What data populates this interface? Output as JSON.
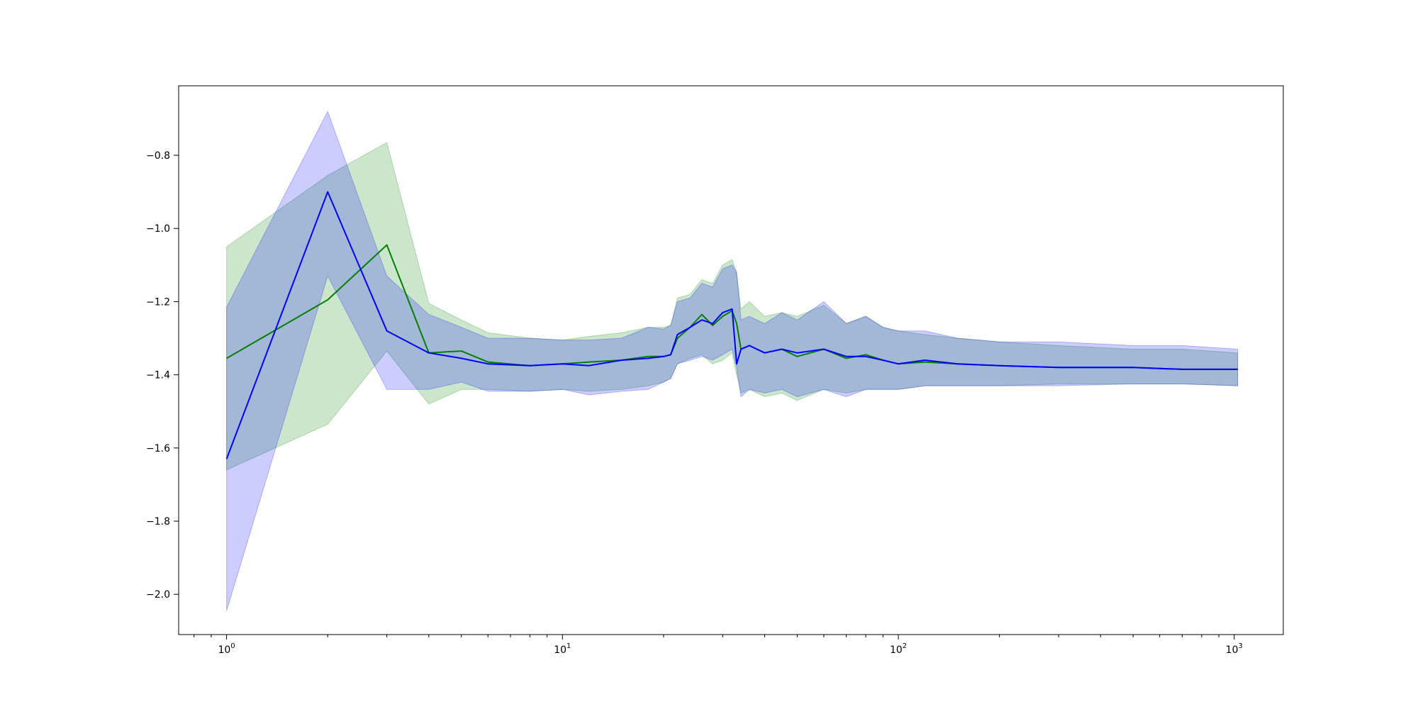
{
  "chart_data": {
    "type": "line",
    "title": "",
    "xlabel": "",
    "ylabel": "",
    "xscale": "log",
    "xlim": [
      0.72,
      1400
    ],
    "ylim": [
      -2.11,
      -0.61
    ],
    "grid": false,
    "legend": "none",
    "x_ticks": [
      {
        "value": 1,
        "label": "10",
        "exp": "0"
      },
      {
        "value": 10,
        "label": "10",
        "exp": "1"
      },
      {
        "value": 100,
        "label": "10",
        "exp": "2"
      },
      {
        "value": 1000,
        "label": "10",
        "exp": "3"
      }
    ],
    "y_ticks": [
      {
        "value": -0.8,
        "label": "−0.8"
      },
      {
        "value": -1.0,
        "label": "−1.0"
      },
      {
        "value": -1.2,
        "label": "−1.2"
      },
      {
        "value": -1.4,
        "label": "−1.4"
      },
      {
        "value": -1.6,
        "label": "−1.6"
      },
      {
        "value": -1.8,
        "label": "−1.8"
      },
      {
        "value": -2.0,
        "label": "−2.0"
      }
    ],
    "series": [
      {
        "color": "#008000",
        "band_color": "#008000",
        "band_opacity": 0.2,
        "x": [
          1,
          2,
          3,
          4,
          5,
          6,
          8,
          10,
          12,
          15,
          18,
          20,
          21,
          22,
          24,
          26,
          28,
          30,
          32,
          33,
          34,
          36,
          40,
          45,
          50,
          60,
          70,
          80,
          90,
          100,
          120,
          150,
          200,
          300,
          500,
          700,
          1024
        ],
        "y": [
          -1.355,
          -1.195,
          -1.045,
          -1.34,
          -1.335,
          -1.365,
          -1.375,
          -1.37,
          -1.365,
          -1.36,
          -1.35,
          -1.35,
          -1.345,
          -1.3,
          -1.27,
          -1.235,
          -1.265,
          -1.24,
          -1.225,
          -1.26,
          -1.33,
          -1.32,
          -1.34,
          -1.33,
          -1.35,
          -1.33,
          -1.355,
          -1.345,
          -1.36,
          -1.37,
          -1.365,
          -1.37,
          -1.375,
          -1.38,
          -1.38,
          -1.385,
          -1.385
        ],
        "lower": [
          -1.66,
          -1.535,
          -1.335,
          -1.48,
          -1.44,
          -1.44,
          -1.445,
          -1.44,
          -1.445,
          -1.44,
          -1.43,
          -1.42,
          -1.41,
          -1.37,
          -1.355,
          -1.345,
          -1.37,
          -1.36,
          -1.34,
          -1.4,
          -1.45,
          -1.44,
          -1.46,
          -1.45,
          -1.47,
          -1.44,
          -1.45,
          -1.44,
          -1.44,
          -1.44,
          -1.43,
          -1.43,
          -1.43,
          -1.425,
          -1.425,
          -1.425,
          -1.43
        ],
        "upper": [
          -1.05,
          -0.855,
          -0.765,
          -1.205,
          -1.25,
          -1.285,
          -1.3,
          -1.305,
          -1.295,
          -1.285,
          -1.27,
          -1.27,
          -1.265,
          -1.19,
          -1.18,
          -1.14,
          -1.15,
          -1.1,
          -1.085,
          -1.12,
          -1.22,
          -1.2,
          -1.24,
          -1.23,
          -1.24,
          -1.21,
          -1.26,
          -1.24,
          -1.27,
          -1.28,
          -1.29,
          -1.3,
          -1.31,
          -1.32,
          -1.33,
          -1.33,
          -1.34
        ]
      },
      {
        "color": "#0000ff",
        "band_color": "#0000ff",
        "band_opacity": 0.2,
        "x": [
          1,
          2,
          3,
          4,
          5,
          6,
          8,
          10,
          12,
          15,
          18,
          20,
          21,
          22,
          24,
          26,
          28,
          30,
          32,
          33,
          34,
          36,
          40,
          45,
          50,
          60,
          70,
          80,
          90,
          100,
          120,
          150,
          200,
          300,
          500,
          700,
          1024
        ],
        "y": [
          -1.63,
          -0.9,
          -1.28,
          -1.34,
          -1.355,
          -1.37,
          -1.375,
          -1.37,
          -1.375,
          -1.36,
          -1.355,
          -1.35,
          -1.345,
          -1.29,
          -1.27,
          -1.25,
          -1.26,
          -1.23,
          -1.22,
          -1.37,
          -1.33,
          -1.32,
          -1.34,
          -1.33,
          -1.34,
          -1.33,
          -1.35,
          -1.35,
          -1.36,
          -1.37,
          -1.36,
          -1.37,
          -1.375,
          -1.38,
          -1.38,
          -1.385,
          -1.385
        ],
        "lower": [
          -2.045,
          -1.13,
          -1.44,
          -1.44,
          -1.42,
          -1.445,
          -1.445,
          -1.44,
          -1.455,
          -1.445,
          -1.44,
          -1.42,
          -1.41,
          -1.37,
          -1.36,
          -1.35,
          -1.36,
          -1.345,
          -1.33,
          -1.38,
          -1.46,
          -1.44,
          -1.45,
          -1.44,
          -1.46,
          -1.44,
          -1.46,
          -1.44,
          -1.44,
          -1.44,
          -1.43,
          -1.43,
          -1.43,
          -1.43,
          -1.425,
          -1.425,
          -1.43
        ],
        "upper": [
          -1.215,
          -0.68,
          -1.13,
          -1.235,
          -1.27,
          -1.3,
          -1.3,
          -1.305,
          -1.305,
          -1.3,
          -1.27,
          -1.275,
          -1.265,
          -1.2,
          -1.19,
          -1.15,
          -1.16,
          -1.11,
          -1.1,
          -1.12,
          -1.25,
          -1.24,
          -1.26,
          -1.23,
          -1.25,
          -1.2,
          -1.26,
          -1.24,
          -1.27,
          -1.28,
          -1.28,
          -1.3,
          -1.31,
          -1.31,
          -1.32,
          -1.32,
          -1.33
        ]
      }
    ]
  }
}
